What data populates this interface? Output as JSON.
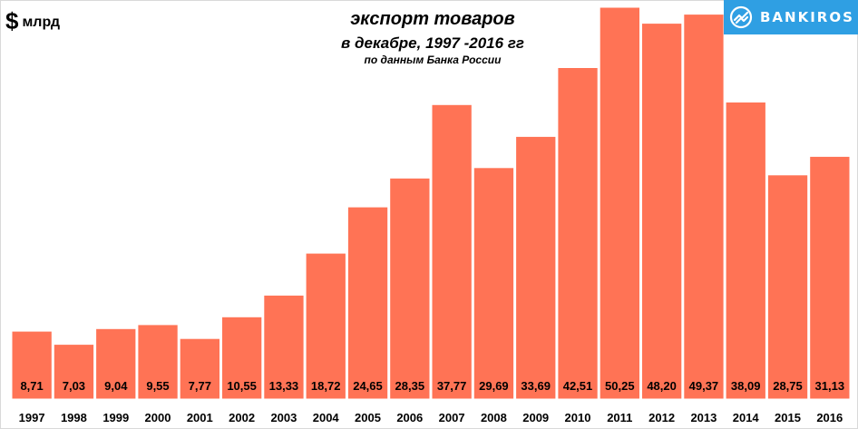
{
  "header": {
    "unit_symbol": "$",
    "unit_text": "млрд",
    "title_line1": "экспорт товаров",
    "title_line2": "в декабре,  1997 -2016 гг",
    "subtitle": "по данным Банка России"
  },
  "brand": {
    "name": "BANKIROS",
    "background_color": "#2f9fe3",
    "icon": "bankiros-logo-icon"
  },
  "colors": {
    "bar": "#ff7355",
    "bar_edge": "#ffffff"
  },
  "chart_data": {
    "type": "bar",
    "title": "экспорт товаров",
    "subtitle": "в декабре,  1997 -2016 гг",
    "ylabel": "$ млрд",
    "xlabel": "",
    "categories": [
      "1997",
      "1998",
      "1999",
      "2000",
      "2001",
      "2002",
      "2003",
      "2004",
      "2005",
      "2006",
      "2007",
      "2008",
      "2009",
      "2010",
      "2011",
      "2012",
      "2013",
      "2014",
      "2015",
      "2016"
    ],
    "values": [
      8.71,
      7.03,
      9.04,
      9.55,
      7.77,
      10.55,
      13.33,
      18.72,
      24.65,
      28.35,
      37.77,
      29.69,
      33.69,
      42.51,
      50.25,
      48.2,
      49.37,
      38.09,
      28.75,
      31.13
    ],
    "value_labels": [
      "8,71",
      "7,03",
      "9,04",
      "9,55",
      "7,77",
      "10,55",
      "13,33",
      "18,72",
      "24,65",
      "28,35",
      "37,77",
      "29,69",
      "33,69",
      "42,51",
      "50,25",
      "48,20",
      "49,37",
      "38,09",
      "28,75",
      "31,13"
    ],
    "ylim": [
      0,
      50.25
    ],
    "grid": false,
    "legend": "none"
  }
}
